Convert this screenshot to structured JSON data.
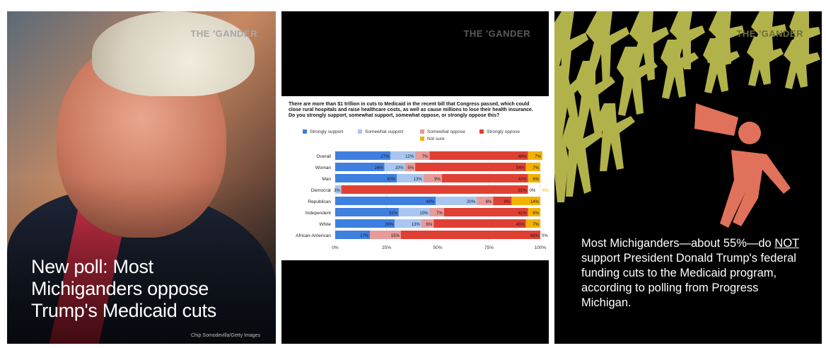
{
  "panels": {
    "left": {
      "brand": "THE 'GANDER",
      "headline": "New poll: Most Michiganders oppose Trump's Medicaid cuts",
      "photo_credit": "Chip Somodevilla/Getty Images"
    },
    "middle": {
      "brand": "THE 'GANDER"
    },
    "right": {
      "brand": "THE 'GANDER",
      "text_before": "Most Michiganders—about 55%—do ",
      "text_emph": "NOT",
      "text_after": " support President Donald Trump's federal funding cuts to the Medicaid program, according to polling from Progress Michigan."
    }
  },
  "chart_data": {
    "type": "bar",
    "orientation": "horizontal-stacked-100",
    "title": "There are more than $1 trillion in cuts to Medicaid in the recent bill that Congress passed, which could close rural hospitals and raise healthcare costs, as well as cause millions to lose their health insurance. Do you strongly support, somewhat support, somewhat oppose, or strongly oppose this?",
    "categories": [
      "Overall",
      "Woman",
      "Man",
      "Democrat",
      "Republican",
      "Independent",
      "White",
      "African-American"
    ],
    "series": [
      {
        "name": "Strongly support",
        "color": "#3f7fe0",
        "values": [
          27,
          24,
          30,
          0,
          49,
          31,
          29,
          17
        ],
        "labels": [
          "27%",
          "24%",
          "30%",
          "",
          "49%",
          "31%",
          "29%",
          "17%"
        ]
      },
      {
        "name": "Somewhat support",
        "color": "#a9c6f0",
        "values": [
          12,
          10,
          13,
          3,
          20,
          15,
          13,
          0
        ],
        "labels": [
          "12%",
          "10%",
          "13%",
          "3%",
          "20%",
          "15%",
          "13%",
          ""
        ]
      },
      {
        "name": "Somewhat oppose",
        "color": "#e79a9a",
        "values": [
          7,
          5,
          9,
          0,
          8,
          7,
          6,
          15
        ],
        "labels": [
          "7%",
          "5%",
          "9%",
          "0%",
          "8%",
          "7%",
          "6%",
          "15%"
        ]
      },
      {
        "name": "Strongly oppose",
        "color": "#e04034",
        "values": [
          48,
          54,
          42,
          91,
          9,
          41,
          45,
          68
        ],
        "labels": [
          "48%",
          "54%",
          "42%",
          "91%",
          "9%",
          "41%",
          "45%",
          "68%"
        ]
      },
      {
        "name": "Not sure",
        "color": "#f3b200",
        "values": [
          7,
          7,
          6,
          0,
          14,
          6,
          7,
          0
        ],
        "labels": [
          "7%",
          "7%",
          "6%",
          "0%",
          "14%",
          "6%",
          "7%",
          "0%"
        ]
      }
    ],
    "extra_labels": {
      "Democrat": "6%"
    },
    "xticks": [
      "0%",
      "25%",
      "50%",
      "75%",
      "100%"
    ],
    "xlim": [
      0,
      100
    ],
    "legend_position": "top"
  }
}
